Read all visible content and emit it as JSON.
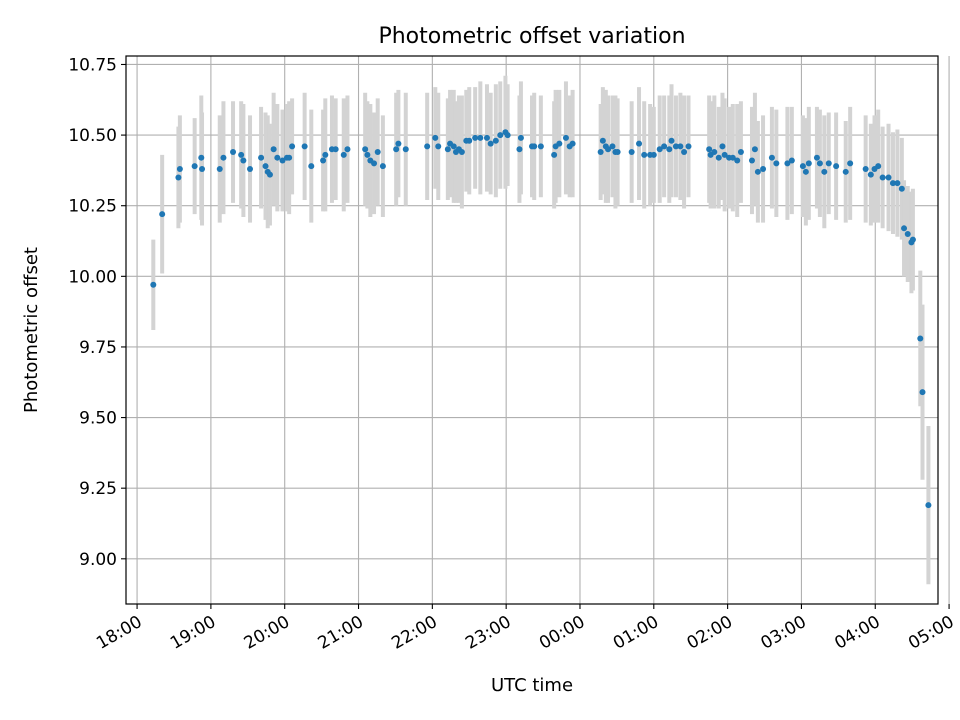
{
  "chart_data": {
    "type": "scatter",
    "title": "Photometric offset variation",
    "xlabel": "UTC time",
    "ylabel": "Photometric offset",
    "xlim": [
      -0.15,
      10.85
    ],
    "ylim": [
      8.84,
      10.78
    ],
    "x_unit": "hours after 18:00 UTC",
    "x_ticks": [
      {
        "v": 0,
        "label": "18:00"
      },
      {
        "v": 1,
        "label": "19:00"
      },
      {
        "v": 2,
        "label": "20:00"
      },
      {
        "v": 3,
        "label": "21:00"
      },
      {
        "v": 4,
        "label": "22:00"
      },
      {
        "v": 5,
        "label": "23:00"
      },
      {
        "v": 6,
        "label": "00:00"
      },
      {
        "v": 7,
        "label": "01:00"
      },
      {
        "v": 8,
        "label": "02:00"
      },
      {
        "v": 9,
        "label": "03:00"
      },
      {
        "v": 10,
        "label": "04:00"
      },
      {
        "v": 11,
        "label": "05:00"
      }
    ],
    "y_ticks": [
      {
        "v": 9.0,
        "label": "9.00"
      },
      {
        "v": 9.25,
        "label": "9.25"
      },
      {
        "v": 9.5,
        "label": "9.50"
      },
      {
        "v": 9.75,
        "label": "9.75"
      },
      {
        "v": 10.0,
        "label": "10.00"
      },
      {
        "v": 10.25,
        "label": "10.25"
      },
      {
        "v": 10.5,
        "label": "10.50"
      },
      {
        "v": 10.75,
        "label": "10.75"
      }
    ],
    "grid": true,
    "marker_color": "#1f77b4",
    "errorbar_color": "#d3d3d3",
    "points": [
      [
        0.22,
        9.97,
        0.16
      ],
      [
        0.34,
        10.22,
        0.21
      ],
      [
        0.56,
        10.35,
        0.18
      ],
      [
        0.58,
        10.38,
        0.19
      ],
      [
        0.78,
        10.39,
        0.17
      ],
      [
        0.87,
        10.42,
        0.22
      ],
      [
        0.88,
        10.38,
        0.2
      ],
      [
        1.12,
        10.38,
        0.19
      ],
      [
        1.17,
        10.42,
        0.2
      ],
      [
        1.3,
        10.44,
        0.18
      ],
      [
        1.41,
        10.43,
        0.19
      ],
      [
        1.44,
        10.41,
        0.2
      ],
      [
        1.53,
        10.38,
        0.19
      ],
      [
        1.68,
        10.42,
        0.18
      ],
      [
        1.74,
        10.39,
        0.19
      ],
      [
        1.77,
        10.37,
        0.2
      ],
      [
        1.8,
        10.36,
        0.18
      ],
      [
        1.85,
        10.45,
        0.2
      ],
      [
        1.9,
        10.42,
        0.19
      ],
      [
        1.97,
        10.41,
        0.18
      ],
      [
        2.03,
        10.42,
        0.19
      ],
      [
        2.06,
        10.42,
        0.2
      ],
      [
        2.1,
        10.46,
        0.17
      ],
      [
        2.27,
        10.46,
        0.19
      ],
      [
        2.36,
        10.39,
        0.2
      ],
      [
        2.52,
        10.41,
        0.18
      ],
      [
        2.55,
        10.43,
        0.2
      ],
      [
        2.64,
        10.45,
        0.19
      ],
      [
        2.69,
        10.45,
        0.18
      ],
      [
        2.8,
        10.43,
        0.2
      ],
      [
        2.85,
        10.45,
        0.19
      ],
      [
        3.09,
        10.45,
        0.2
      ],
      [
        3.12,
        10.43,
        0.19
      ],
      [
        3.16,
        10.41,
        0.2
      ],
      [
        3.21,
        10.4,
        0.18
      ],
      [
        3.26,
        10.44,
        0.19
      ],
      [
        3.33,
        10.39,
        0.18
      ],
      [
        3.51,
        10.45,
        0.2
      ],
      [
        3.54,
        10.47,
        0.19
      ],
      [
        3.64,
        10.45,
        0.2
      ],
      [
        3.93,
        10.46,
        0.19
      ],
      [
        4.04,
        10.49,
        0.18
      ],
      [
        4.08,
        10.46,
        0.19
      ],
      [
        4.21,
        10.45,
        0.18
      ],
      [
        4.24,
        10.47,
        0.19
      ],
      [
        4.29,
        10.46,
        0.2
      ],
      [
        4.32,
        10.44,
        0.18
      ],
      [
        4.36,
        10.45,
        0.19
      ],
      [
        4.4,
        10.44,
        0.2
      ],
      [
        4.46,
        10.48,
        0.18
      ],
      [
        4.5,
        10.48,
        0.19
      ],
      [
        4.58,
        10.49,
        0.18
      ],
      [
        4.65,
        10.49,
        0.2
      ],
      [
        4.74,
        10.49,
        0.19
      ],
      [
        4.79,
        10.47,
        0.18
      ],
      [
        4.86,
        10.48,
        0.2
      ],
      [
        4.92,
        10.5,
        0.19
      ],
      [
        4.99,
        10.51,
        0.2
      ],
      [
        5.02,
        10.5,
        0.18
      ],
      [
        5.18,
        10.45,
        0.19
      ],
      [
        5.2,
        10.49,
        0.2
      ],
      [
        5.35,
        10.46,
        0.18
      ],
      [
        5.38,
        10.46,
        0.19
      ],
      [
        5.47,
        10.46,
        0.18
      ],
      [
        5.65,
        10.43,
        0.19
      ],
      [
        5.67,
        10.46,
        0.2
      ],
      [
        5.72,
        10.47,
        0.19
      ],
      [
        5.81,
        10.49,
        0.2
      ],
      [
        5.86,
        10.46,
        0.18
      ],
      [
        5.9,
        10.47,
        0.19
      ],
      [
        6.28,
        10.44,
        0.17
      ],
      [
        6.31,
        10.48,
        0.19
      ],
      [
        6.35,
        10.46,
        0.2
      ],
      [
        6.38,
        10.45,
        0.19
      ],
      [
        6.44,
        10.46,
        0.18
      ],
      [
        6.48,
        10.44,
        0.2
      ],
      [
        6.51,
        10.44,
        0.19
      ],
      [
        6.7,
        10.44,
        0.18
      ],
      [
        6.8,
        10.47,
        0.2
      ],
      [
        6.87,
        10.43,
        0.19
      ],
      [
        6.95,
        10.43,
        0.18
      ],
      [
        7.0,
        10.43,
        0.17
      ],
      [
        7.08,
        10.45,
        0.19
      ],
      [
        7.14,
        10.46,
        0.18
      ],
      [
        7.21,
        10.45,
        0.19
      ],
      [
        7.24,
        10.48,
        0.2
      ],
      [
        7.3,
        10.46,
        0.18
      ],
      [
        7.36,
        10.46,
        0.19
      ],
      [
        7.41,
        10.44,
        0.2
      ],
      [
        7.47,
        10.46,
        0.18
      ],
      [
        7.75,
        10.45,
        0.19
      ],
      [
        7.77,
        10.43,
        0.19
      ],
      [
        7.82,
        10.44,
        0.2
      ],
      [
        7.88,
        10.42,
        0.18
      ],
      [
        7.93,
        10.46,
        0.19
      ],
      [
        7.96,
        10.43,
        0.2
      ],
      [
        8.02,
        10.42,
        0.18
      ],
      [
        8.07,
        10.42,
        0.19
      ],
      [
        8.13,
        10.41,
        0.2
      ],
      [
        8.18,
        10.44,
        0.18
      ],
      [
        8.33,
        10.41,
        0.19
      ],
      [
        8.37,
        10.45,
        0.2
      ],
      [
        8.41,
        10.37,
        0.18
      ],
      [
        8.48,
        10.38,
        0.19
      ],
      [
        8.6,
        10.42,
        0.18
      ],
      [
        8.66,
        10.4,
        0.19
      ],
      [
        8.81,
        10.4,
        0.2
      ],
      [
        8.87,
        10.41,
        0.19
      ],
      [
        9.02,
        10.39,
        0.18
      ],
      [
        9.06,
        10.37,
        0.19
      ],
      [
        9.1,
        10.4,
        0.2
      ],
      [
        9.21,
        10.42,
        0.18
      ],
      [
        9.25,
        10.4,
        0.19
      ],
      [
        9.31,
        10.37,
        0.2
      ],
      [
        9.37,
        10.4,
        0.18
      ],
      [
        9.47,
        10.39,
        0.19
      ],
      [
        9.6,
        10.37,
        0.18
      ],
      [
        9.66,
        10.4,
        0.2
      ],
      [
        9.87,
        10.38,
        0.19
      ],
      [
        9.94,
        10.36,
        0.18
      ],
      [
        9.99,
        10.38,
        0.19
      ],
      [
        10.04,
        10.39,
        0.2
      ],
      [
        10.1,
        10.35,
        0.18
      ],
      [
        10.18,
        10.35,
        0.19
      ],
      [
        10.24,
        10.33,
        0.18
      ],
      [
        10.3,
        10.33,
        0.19
      ],
      [
        10.36,
        10.31,
        0.18
      ],
      [
        10.39,
        10.17,
        0.17
      ],
      [
        10.44,
        10.15,
        0.17
      ],
      [
        10.49,
        10.12,
        0.18
      ],
      [
        10.51,
        10.13,
        0.18
      ],
      [
        10.61,
        9.78,
        0.24
      ],
      [
        10.64,
        9.59,
        0.31
      ],
      [
        10.72,
        9.19,
        0.28
      ]
    ]
  }
}
